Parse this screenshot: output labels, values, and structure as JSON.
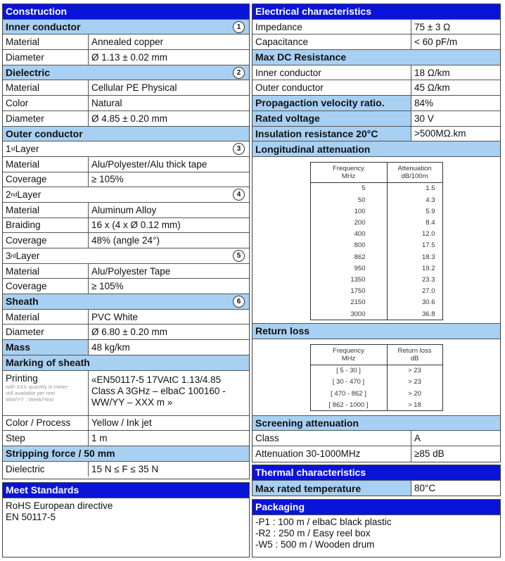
{
  "left": {
    "construction": "Construction",
    "inner": {
      "title": "Inner conductor",
      "num": "1",
      "rows": [
        [
          "Material",
          "Annealed copper"
        ],
        [
          "Diameter",
          "Ø 1.13 ± 0.02 mm"
        ]
      ]
    },
    "dielectric": {
      "title": "Dielectric",
      "num": "2",
      "rows": [
        [
          "Material",
          "Cellular PE Physical"
        ],
        [
          "Color",
          "Natural"
        ],
        [
          "Diameter",
          "Ø 4.85 ± 0.20 mm"
        ]
      ]
    },
    "outer": {
      "title": "Outer conductor",
      "layers": [
        {
          "n": "1",
          "sup": "st",
          "rest": " Layer",
          "num": "3",
          "rows": [
            [
              "Material",
              "Alu/Polyester/Alu thick tape"
            ],
            [
              "Coverage",
              "≥ 105%"
            ]
          ]
        },
        {
          "n": "2",
          "sup": "nd",
          "rest": " Layer",
          "num": "4",
          "rows": [
            [
              "Material",
              "Aluminum Alloy"
            ],
            [
              "Braiding",
              "16 x (4 x Ø 0.12 mm)"
            ],
            [
              "Coverage",
              "48% (angle 24°)"
            ]
          ]
        },
        {
          "n": "3",
          "sup": "rd",
          "rest": " Layer",
          "num": "5",
          "rows": [
            [
              "Material",
              "Alu/Polyester Tape"
            ],
            [
              "Coverage",
              "≥ 105%"
            ]
          ]
        }
      ]
    },
    "sheath": {
      "title": "Sheath",
      "num": "6",
      "rows": [
        [
          "Material",
          "PVC White"
        ],
        [
          "Diameter",
          "Ø 6.80 ± 0.20 mm"
        ]
      ]
    },
    "mass": {
      "label": "Mass",
      "value": "48 kg/km"
    },
    "marking": {
      "title": "Marking of sheath",
      "printing_label": "Printing",
      "printing_note": [
        "with XXX quantity in meter",
        "still available per reel",
        "WW/YY : Week/Year"
      ],
      "printing_value": [
        "«EN50117-5 17VAtC 1.13/4.85",
        "Class A 3GHz – elbaC 100160 -",
        "WW/YY – XXX m »"
      ],
      "rows": [
        [
          "Color / Process",
          "Yellow / Ink jet"
        ],
        [
          "Step",
          "1 m"
        ]
      ]
    },
    "stripping": {
      "title": "Stripping force / 50 mm",
      "rows": [
        [
          "Dielectric",
          "15 N ≤ F ≤ 35 N"
        ]
      ]
    },
    "standards": {
      "title": "Meet Standards",
      "lines": [
        "RoHS European directive",
        "EN 50117-5"
      ]
    }
  },
  "right": {
    "electrical": {
      "title": "Electrical characteristics",
      "rows": [
        [
          "Impedance",
          "75 ± 3 Ω"
        ],
        [
          "Capacitance",
          "< 60 pF/m"
        ]
      ]
    },
    "dc": {
      "title": "Max DC Resistance",
      "rows": [
        [
          "Inner conductor",
          "18 Ω/km"
        ],
        [
          "Outer conductor",
          "45 Ω/km"
        ]
      ]
    },
    "bold_rows": [
      [
        "Propagaction velocity ratio.",
        "84%"
      ],
      [
        "Rated voltage",
        "30 V"
      ],
      [
        "Insulation resistance 20°C",
        ">500MΩ.km"
      ]
    ],
    "longitudinal": {
      "title": "Longitudinal attenuation",
      "head": [
        [
          "Frequency",
          "MHz"
        ],
        [
          "Attenuation",
          "dB/100m"
        ]
      ],
      "rows": [
        [
          "5",
          "1.5"
        ],
        [
          "50",
          "4.3"
        ],
        [
          "100",
          "5.9"
        ],
        [
          "200",
          "8.4"
        ],
        [
          "400",
          "12.0"
        ],
        [
          "800",
          "17.5"
        ],
        [
          "862",
          "18.3"
        ],
        [
          "950",
          "19.2"
        ],
        [
          "1350",
          "23.3"
        ],
        [
          "1750",
          "27.0"
        ],
        [
          "2150",
          "30.6"
        ],
        [
          "3000",
          "36.8"
        ]
      ]
    },
    "return_loss": {
      "title": "Return loss",
      "head": [
        [
          "Frequency",
          "MHz"
        ],
        [
          "Return loss",
          "dB"
        ]
      ],
      "rows": [
        [
          "[ 5 - 30 ]",
          "> 23"
        ],
        [
          "[ 30 - 470 ]",
          "> 23"
        ],
        [
          "[ 470 - 862 ]",
          "> 20"
        ],
        [
          "[ 862 - 1000 ]",
          "> 18"
        ]
      ]
    },
    "screening": {
      "title": "Screening attenuation",
      "rows": [
        [
          "Class",
          "A"
        ],
        [
          "Attenuation 30-1000MHz",
          "≥85 dB"
        ]
      ]
    },
    "thermal": {
      "title": "Thermal characteristics",
      "label": "Max rated temperature",
      "value": "80°C"
    },
    "packaging": {
      "title": "Packaging",
      "lines": [
        "-P1 : 100 m / elbaC black plastic",
        "-R2 : 250 m / Easy reel box",
        "-W5 : 500 m / Wooden drum"
      ]
    }
  }
}
